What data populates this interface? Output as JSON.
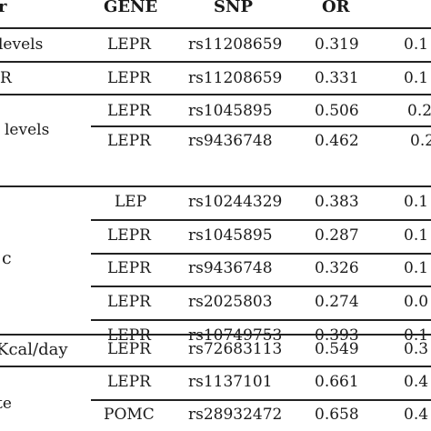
{
  "table": {
    "headers": [
      "r",
      "GENE",
      "SNP",
      "OR",
      ""
    ],
    "rows": [
      {
        "trait": "levels",
        "gene": "LEPR",
        "snp": "rs11208659",
        "or": "0.319",
        "ci": "0.1"
      },
      {
        "trait": "R",
        "gene": "LEPR",
        "snp": "rs11208659",
        "or": "0.331",
        "ci": "0.1"
      },
      {
        "trait": "levels",
        "gene": "LEPR",
        "snp": "rs1045895",
        "or": "0.506",
        "ci": "0.2"
      },
      {
        "trait": "",
        "gene": "LEPR",
        "snp": "rs9436748",
        "or": "0.462",
        "ci": "0.2"
      },
      {
        "trait": "",
        "gene": "LEP",
        "snp": "rs10244329",
        "or": "0.383",
        "ci": "0.1"
      },
      {
        "trait": "",
        "gene": "LEPR",
        "snp": "rs1045895",
        "or": "0.287",
        "ci": "0.1"
      },
      {
        "trait": "c",
        "gene": "LEPR",
        "snp": "rs9436748",
        "or": "0.326",
        "ci": "0.1"
      },
      {
        "trait": "",
        "gene": "LEPR",
        "snp": "rs2025803",
        "or": "0.274",
        "ci": "0.0"
      },
      {
        "trait": "",
        "gene": "LEPR",
        "snp": "rs10749753",
        "or": "0.393",
        "ci": "0.1"
      },
      {
        "trait": "Kcal/day",
        "gene": "LEPR",
        "snp": "rs72683113",
        "or": "0.549",
        "ci": "0.3"
      },
      {
        "trait": "",
        "gene": "LEPR",
        "snp": "rs1137101",
        "or": "0.661",
        "ci": "0.4"
      },
      {
        "trait": "te",
        "gene": "POMC",
        "snp": "rs28932472",
        "or": "0.658",
        "ci": "0.4"
      }
    ]
  }
}
